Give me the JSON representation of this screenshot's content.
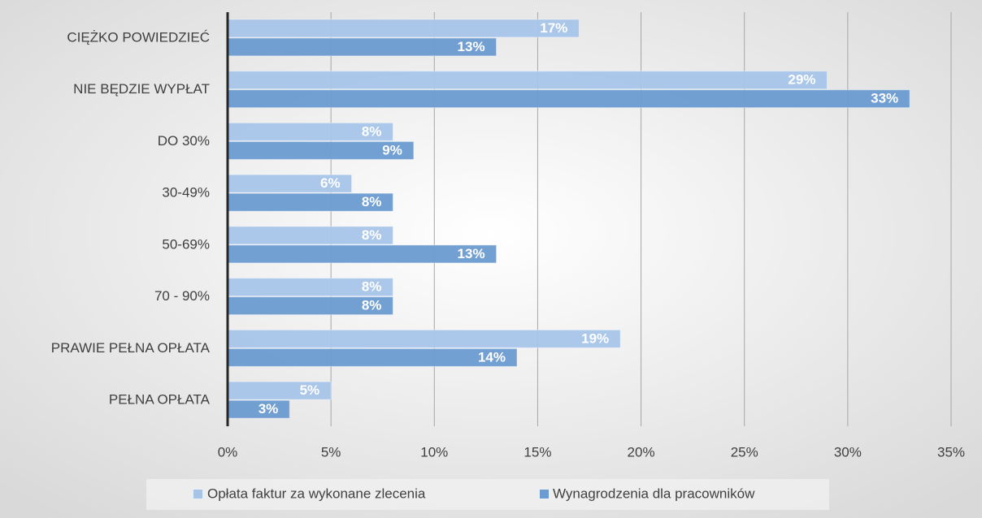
{
  "chart_data": {
    "type": "barh",
    "categories": [
      "CIĘŻKO POWIEDZIEĆ",
      "NIE BĘDZIE WYPŁAT",
      "DO 30%",
      "30-49%",
      "50-69%",
      "70 - 90%",
      "PRAWIE PEŁNA OPŁATA",
      "PEŁNA OPŁATA"
    ],
    "series": [
      {
        "name": "Opłata faktur za wykonane zlecenia",
        "color": "#a6c4e8",
        "values": [
          17,
          29,
          8,
          6,
          8,
          8,
          19,
          5
        ],
        "value_labels": [
          "17%",
          "29%",
          "8%",
          "6%",
          "8%",
          "8%",
          "19%",
          "5%"
        ]
      },
      {
        "name": "Wynagrodzenia dla pracowników",
        "color": "#6b9bd0",
        "values": [
          13,
          33,
          9,
          8,
          13,
          8,
          14,
          3
        ],
        "value_labels": [
          "13%",
          "33%",
          "9%",
          "8%",
          "13%",
          "8%",
          "14%",
          "3%"
        ]
      }
    ],
    "xlim": [
      0,
      35
    ],
    "xticks": [
      {
        "value": 0,
        "label": "0%"
      },
      {
        "value": 5,
        "label": "5%"
      },
      {
        "value": 10,
        "label": "10%"
      },
      {
        "value": 15,
        "label": "15%"
      },
      {
        "value": 20,
        "label": "20%"
      },
      {
        "value": 25,
        "label": "25%"
      },
      {
        "value": 30,
        "label": "30%"
      },
      {
        "value": 35,
        "label": "35%"
      }
    ],
    "grid": true,
    "legend": "bottom"
  }
}
